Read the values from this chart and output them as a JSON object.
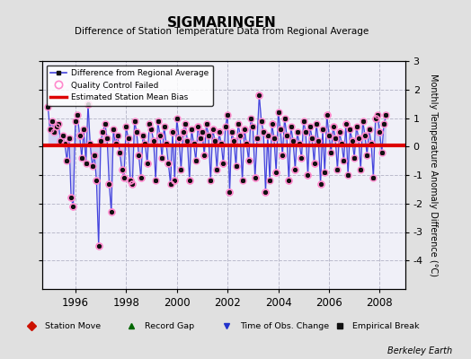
{
  "title": "SIGMARINGEN",
  "subtitle": "Difference of Station Temperature Data from Regional Average",
  "ylabel": "Monthly Temperature Anomaly Difference (°C)",
  "xlabel_note": "Berkeley Earth",
  "ylim": [
    -5,
    3
  ],
  "yticks_right": [
    -4,
    -3,
    -2,
    -1,
    0,
    1,
    2,
    3
  ],
  "xlim": [
    1994.7,
    2009.0
  ],
  "xticks": [
    1996,
    1998,
    2000,
    2002,
    2004,
    2006,
    2008
  ],
  "bg_color": "#e0e0e0",
  "plot_bg_color": "#f0f0f8",
  "line_color": "#4444dd",
  "dot_color": "#111111",
  "bias_color": "#dd0000",
  "bias_value": 0.05,
  "qc_fail_color": "#ff88cc",
  "grid_color": "#bbbbcc",
  "data": [
    [
      1994.917,
      1.4
    ],
    [
      1995.0,
      0.6
    ],
    [
      1995.083,
      0.9
    ],
    [
      1995.167,
      0.5
    ],
    [
      1995.25,
      0.7
    ],
    [
      1995.333,
      0.8
    ],
    [
      1995.417,
      0.2
    ],
    [
      1995.5,
      0.4
    ],
    [
      1995.583,
      0.1
    ],
    [
      1995.667,
      -0.5
    ],
    [
      1995.75,
      0.3
    ],
    [
      1995.833,
      -1.8
    ],
    [
      1995.917,
      -2.1
    ],
    [
      1996.0,
      0.9
    ],
    [
      1996.083,
      1.1
    ],
    [
      1996.167,
      0.4
    ],
    [
      1996.25,
      -0.4
    ],
    [
      1996.333,
      0.6
    ],
    [
      1996.417,
      -0.6
    ],
    [
      1996.5,
      1.5
    ],
    [
      1996.583,
      0.1
    ],
    [
      1996.667,
      -0.7
    ],
    [
      1996.75,
      -0.3
    ],
    [
      1996.833,
      -1.2
    ],
    [
      1996.917,
      -3.5
    ],
    [
      1997.0,
      0.2
    ],
    [
      1997.083,
      0.5
    ],
    [
      1997.167,
      0.8
    ],
    [
      1997.25,
      0.3
    ],
    [
      1997.333,
      -1.3
    ],
    [
      1997.417,
      -2.3
    ],
    [
      1997.5,
      0.6
    ],
    [
      1997.583,
      0.1
    ],
    [
      1997.667,
      0.4
    ],
    [
      1997.75,
      -0.2
    ],
    [
      1997.833,
      -0.8
    ],
    [
      1997.917,
      -1.1
    ],
    [
      1998.0,
      0.7
    ],
    [
      1998.083,
      0.3
    ],
    [
      1998.167,
      -1.2
    ],
    [
      1998.25,
      -1.3
    ],
    [
      1998.333,
      0.9
    ],
    [
      1998.417,
      0.5
    ],
    [
      1998.5,
      -0.3
    ],
    [
      1998.583,
      -1.1
    ],
    [
      1998.667,
      0.4
    ],
    [
      1998.75,
      0.1
    ],
    [
      1998.833,
      -0.6
    ],
    [
      1998.917,
      0.8
    ],
    [
      1999.0,
      0.6
    ],
    [
      1999.083,
      0.2
    ],
    [
      1999.167,
      -1.2
    ],
    [
      1999.25,
      0.9
    ],
    [
      1999.333,
      0.4
    ],
    [
      1999.417,
      -0.4
    ],
    [
      1999.5,
      0.7
    ],
    [
      1999.583,
      0.1
    ],
    [
      1999.667,
      -0.6
    ],
    [
      1999.75,
      -1.3
    ],
    [
      1999.833,
      0.5
    ],
    [
      1999.917,
      -1.2
    ],
    [
      2000.0,
      1.0
    ],
    [
      2000.083,
      0.3
    ],
    [
      2000.167,
      -0.8
    ],
    [
      2000.25,
      0.5
    ],
    [
      2000.333,
      0.8
    ],
    [
      2000.417,
      0.2
    ],
    [
      2000.5,
      -1.2
    ],
    [
      2000.583,
      0.6
    ],
    [
      2000.667,
      0.1
    ],
    [
      2000.75,
      -0.5
    ],
    [
      2000.833,
      0.7
    ],
    [
      2000.917,
      0.3
    ],
    [
      2001.0,
      0.5
    ],
    [
      2001.083,
      -0.3
    ],
    [
      2001.167,
      0.8
    ],
    [
      2001.25,
      0.4
    ],
    [
      2001.333,
      -1.2
    ],
    [
      2001.417,
      0.6
    ],
    [
      2001.5,
      0.2
    ],
    [
      2001.583,
      -0.8
    ],
    [
      2001.667,
      0.5
    ],
    [
      2001.75,
      0.1
    ],
    [
      2001.833,
      -0.6
    ],
    [
      2001.917,
      0.7
    ],
    [
      2002.0,
      1.1
    ],
    [
      2002.083,
      -1.6
    ],
    [
      2002.167,
      0.5
    ],
    [
      2002.25,
      0.2
    ],
    [
      2002.333,
      -0.7
    ],
    [
      2002.417,
      0.8
    ],
    [
      2002.5,
      0.4
    ],
    [
      2002.583,
      -1.2
    ],
    [
      2002.667,
      0.6
    ],
    [
      2002.75,
      0.1
    ],
    [
      2002.833,
      -0.5
    ],
    [
      2002.917,
      1.0
    ],
    [
      2003.0,
      0.7
    ],
    [
      2003.083,
      -1.1
    ],
    [
      2003.167,
      0.3
    ],
    [
      2003.25,
      1.8
    ],
    [
      2003.333,
      0.9
    ],
    [
      2003.417,
      0.5
    ],
    [
      2003.5,
      -1.6
    ],
    [
      2003.583,
      0.4
    ],
    [
      2003.667,
      -1.2
    ],
    [
      2003.75,
      0.8
    ],
    [
      2003.833,
      0.3
    ],
    [
      2003.917,
      -0.9
    ],
    [
      2004.0,
      1.2
    ],
    [
      2004.083,
      0.6
    ],
    [
      2004.167,
      -0.3
    ],
    [
      2004.25,
      1.0
    ],
    [
      2004.333,
      0.4
    ],
    [
      2004.417,
      -1.2
    ],
    [
      2004.5,
      0.7
    ],
    [
      2004.583,
      0.2
    ],
    [
      2004.667,
      -0.8
    ],
    [
      2004.75,
      0.5
    ],
    [
      2004.833,
      0.1
    ],
    [
      2004.917,
      -0.4
    ],
    [
      2005.0,
      0.9
    ],
    [
      2005.083,
      0.5
    ],
    [
      2005.167,
      -1.0
    ],
    [
      2005.25,
      0.7
    ],
    [
      2005.333,
      0.3
    ],
    [
      2005.417,
      -0.6
    ],
    [
      2005.5,
      0.8
    ],
    [
      2005.583,
      0.2
    ],
    [
      2005.667,
      -1.3
    ],
    [
      2005.75,
      0.6
    ],
    [
      2005.833,
      -0.9
    ],
    [
      2005.917,
      1.1
    ],
    [
      2006.0,
      0.4
    ],
    [
      2006.083,
      -0.2
    ],
    [
      2006.167,
      0.7
    ],
    [
      2006.25,
      0.3
    ],
    [
      2006.333,
      -0.8
    ],
    [
      2006.417,
      0.5
    ],
    [
      2006.5,
      0.1
    ],
    [
      2006.583,
      -0.5
    ],
    [
      2006.667,
      0.8
    ],
    [
      2006.75,
      -1.0
    ],
    [
      2006.833,
      0.6
    ],
    [
      2006.917,
      0.2
    ],
    [
      2007.0,
      -0.4
    ],
    [
      2007.083,
      0.7
    ],
    [
      2007.167,
      0.3
    ],
    [
      2007.25,
      -0.8
    ],
    [
      2007.333,
      0.9
    ],
    [
      2007.417,
      0.4
    ],
    [
      2007.5,
      -0.3
    ],
    [
      2007.583,
      0.6
    ],
    [
      2007.667,
      0.1
    ],
    [
      2007.75,
      -1.1
    ],
    [
      2007.833,
      1.0
    ],
    [
      2007.917,
      1.1
    ],
    [
      2008.0,
      0.5
    ],
    [
      2008.083,
      -0.2
    ],
    [
      2008.167,
      0.8
    ],
    [
      2008.25,
      1.1
    ]
  ],
  "qc_fail_indices": [
    11,
    12,
    15,
    19,
    23,
    24,
    29,
    30,
    35,
    36,
    39,
    40,
    43,
    44,
    47,
    50,
    53,
    57,
    59,
    60,
    62,
    64,
    67,
    71,
    74,
    78,
    81,
    83,
    86,
    88,
    91,
    93,
    95,
    98,
    100,
    103,
    106,
    108,
    111,
    114,
    117,
    120,
    123,
    126,
    129,
    132,
    135,
    138,
    141,
    144,
    147,
    150,
    153,
    155,
    157
  ]
}
